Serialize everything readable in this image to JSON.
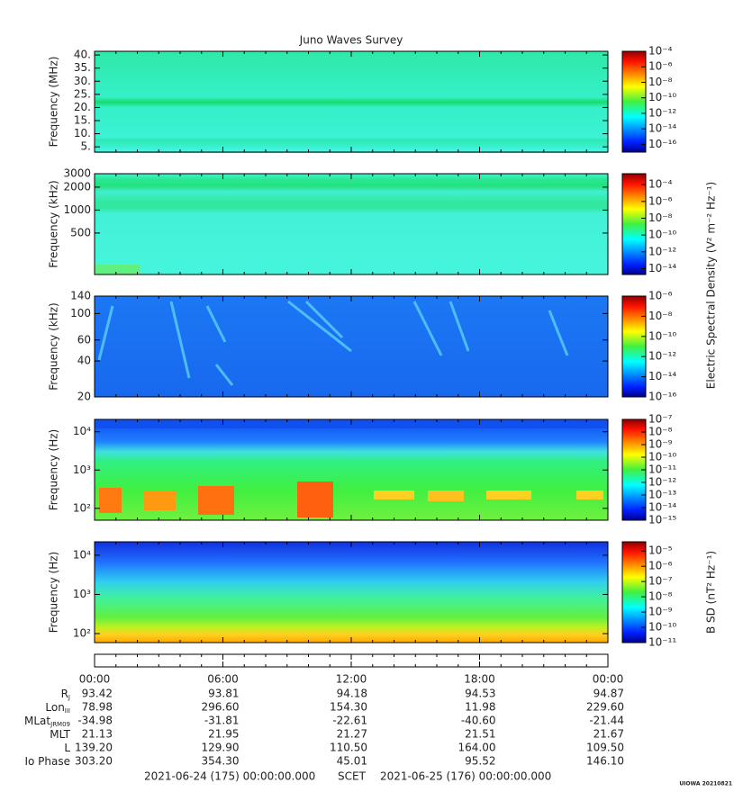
{
  "chart_data": {
    "type": "spectrogram",
    "title": "Juno Waves Survey",
    "panels": [
      {
        "ylabel": "Frequency (MHz)",
        "yscale": "linear",
        "ylim": [
          3,
          41.4
        ],
        "yticks": [
          {
            "value": 5,
            "label": "5."
          },
          {
            "value": 10,
            "label": "10."
          },
          {
            "value": 15,
            "label": "15."
          },
          {
            "value": 20,
            "label": "20."
          },
          {
            "value": 25,
            "label": "25."
          },
          {
            "value": 30,
            "label": "30."
          },
          {
            "value": 35,
            "label": "35."
          },
          {
            "value": 40,
            "label": "40."
          }
        ],
        "clim": [
          1e-17,
          0.0001
        ],
        "cticks": [
          {
            "value": 0.0001,
            "label": "10⁻⁴"
          },
          {
            "value": 1e-06,
            "label": "10⁻⁶"
          },
          {
            "value": 1e-08,
            "label": "10⁻⁸"
          },
          {
            "value": 1e-10,
            "label": "10⁻¹⁰"
          },
          {
            "value": 1e-12,
            "label": "10⁻¹²"
          },
          {
            "value": 1e-14,
            "label": "10⁻¹⁴"
          },
          {
            "value": 1e-16,
            "label": "10⁻¹⁶"
          }
        ]
      },
      {
        "ylabel": "Frequency (kHz)",
        "yscale": "log",
        "ylim": [
          143,
          3000
        ],
        "yticks": [
          500,
          1000,
          2000,
          3000
        ],
        "clim": [
          2e-15,
          0.002
        ],
        "cticks": [
          {
            "value": 0.0001,
            "label": "10⁻⁴"
          },
          {
            "value": 1e-06,
            "label": "10⁻⁶"
          },
          {
            "value": 1e-08,
            "label": "10⁻⁸"
          },
          {
            "value": 1e-10,
            "label": "10⁻¹⁰"
          },
          {
            "value": 1e-12,
            "label": "10⁻¹²"
          },
          {
            "value": 1e-14,
            "label": "10⁻¹⁴"
          }
        ]
      },
      {
        "ylabel": "Frequency (kHz)",
        "yscale": "log",
        "ylim": [
          20,
          140
        ],
        "yticks": [
          20,
          40,
          60,
          100,
          140
        ],
        "clim": [
          1e-16,
          1e-06
        ],
        "cticks": [
          {
            "value": 1e-06,
            "label": "10⁻⁶"
          },
          {
            "value": 1e-08,
            "label": "10⁻⁸"
          },
          {
            "value": 1e-10,
            "label": "10⁻¹⁰"
          },
          {
            "value": 1e-12,
            "label": "10⁻¹²"
          },
          {
            "value": 1e-14,
            "label": "10⁻¹⁴"
          },
          {
            "value": 1e-16,
            "label": "10⁻¹⁶"
          }
        ]
      },
      {
        "ylabel": "Frequency (Hz)",
        "yscale": "log",
        "ylim": [
          49,
          21000
        ],
        "yticks": [
          {
            "value": 100,
            "label": "10²"
          },
          {
            "value": 1000,
            "label": "10³"
          },
          {
            "value": 10000,
            "label": "10⁴"
          }
        ],
        "clim": [
          1e-15,
          1e-07
        ],
        "cticks": [
          {
            "value": 1e-07,
            "label": "10⁻⁷"
          },
          {
            "value": 1e-08,
            "label": "10⁻⁸"
          },
          {
            "value": 1e-09,
            "label": "10⁻⁹"
          },
          {
            "value": 1e-10,
            "label": "10⁻¹⁰"
          },
          {
            "value": 1e-11,
            "label": "10⁻¹¹"
          },
          {
            "value": 1e-12,
            "label": "10⁻¹²"
          },
          {
            "value": 1e-13,
            "label": "10⁻¹³"
          },
          {
            "value": 1e-14,
            "label": "10⁻¹⁴"
          },
          {
            "value": 1e-15,
            "label": "10⁻¹⁵"
          }
        ]
      },
      {
        "ylabel": "Frequency (Hz)",
        "yscale": "log",
        "ylim": [
          59,
          22000
        ],
        "yticks": [
          {
            "value": 100,
            "label": "10²"
          },
          {
            "value": 1000,
            "label": "10³"
          },
          {
            "value": 10000,
            "label": "10⁴"
          }
        ],
        "clim": [
          1e-11,
          4e-05
        ],
        "cticks": [
          {
            "value": 1e-05,
            "label": "10⁻⁵"
          },
          {
            "value": 1e-06,
            "label": "10⁻⁶"
          },
          {
            "value": 1e-07,
            "label": "10⁻⁷"
          },
          {
            "value": 1e-08,
            "label": "10⁻⁸"
          },
          {
            "value": 1e-09,
            "label": "10⁻⁹"
          },
          {
            "value": 1e-10,
            "label": "10⁻¹⁰"
          },
          {
            "value": 1e-11,
            "label": "10⁻¹¹"
          }
        ]
      }
    ],
    "electric_label": "Electric Spectral Density (V² m⁻² Hz⁻¹)",
    "magnetic_label": "B SD (nT² Hz⁻¹)",
    "times": [
      "00:00",
      "06:00",
      "12:00",
      "18:00",
      "00:00"
    ],
    "ephemeris": [
      {
        "label": "R",
        "sub": "J",
        "values": [
          "93.42",
          "93.81",
          "94.18",
          "94.53",
          "94.87"
        ]
      },
      {
        "label": "Lon",
        "sub": "III",
        "values": [
          "78.98",
          "296.60",
          "154.30",
          "11.98",
          "229.60"
        ]
      },
      {
        "label": "MLat",
        "sub": "JRM09",
        "values": [
          "-34.98",
          "-31.81",
          "-22.61",
          "-40.60",
          "-21.44"
        ]
      },
      {
        "label": "MLT",
        "values": [
          "21.13",
          "21.95",
          "21.27",
          "21.51",
          "21.67"
        ]
      },
      {
        "label": "L",
        "values": [
          "139.20",
          "129.90",
          "110.50",
          "164.00",
          "109.50"
        ]
      },
      {
        "label": "Io Phase",
        "values": [
          "303.20",
          "354.30",
          "45.01",
          "95.52",
          "146.10"
        ]
      }
    ],
    "start": "2021-06-24 (175) 00:00:00.000",
    "scet": "SCET",
    "end": "2021-06-25 (176) 00:00:00.000",
    "credit": "UIOWA 20210821"
  }
}
